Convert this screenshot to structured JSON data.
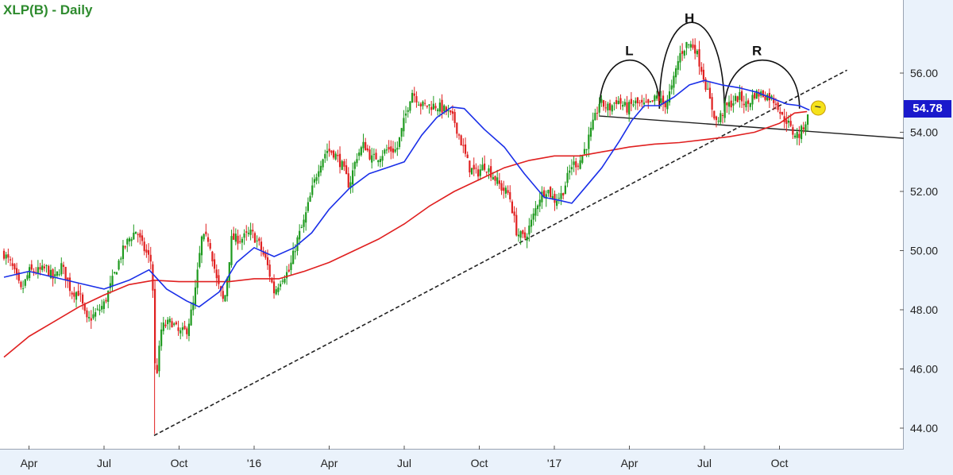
{
  "title": "XLP(B) - Daily",
  "last_price": "54.78",
  "colors": {
    "up": "#1f9a1f",
    "down": "#e02020",
    "ma_short": "#1a2fe8",
    "ma_long": "#e02020",
    "last_box": "#1a1acc",
    "marker": "#f5e21b"
  },
  "chart_data": {
    "type": "line",
    "title": "XLP(B) - Daily",
    "y_axis": {
      "min": 43.5,
      "max": 58,
      "tick_labels": [
        "44.00",
        "46.00",
        "48.00",
        "50.00",
        "52.00",
        "54.00",
        "56.00"
      ],
      "side": "right"
    },
    "x_axis": {
      "tick_labels": [
        "Apr",
        "Jul",
        "Oct",
        "'16",
        "Apr",
        "Jul",
        "Oct",
        "'17",
        "Apr",
        "Jul",
        "Oct"
      ],
      "tick_positions": [
        1,
        4,
        7,
        10,
        13,
        16,
        19,
        22,
        25,
        28,
        31
      ]
    },
    "grid": false,
    "price_waypoints": [
      [
        0,
        49.9
      ],
      [
        0.3,
        49.5
      ],
      [
        0.7,
        48.6
      ],
      [
        1.0,
        49.3
      ],
      [
        1.4,
        49.3
      ],
      [
        1.7,
        49.4
      ],
      [
        2.0,
        49.0
      ],
      [
        2.3,
        49.5
      ],
      [
        2.7,
        48.6
      ],
      [
        3.0,
        48.6
      ],
      [
        3.3,
        47.6
      ],
      [
        3.7,
        47.9
      ],
      [
        4.0,
        48.2
      ],
      [
        4.3,
        48.9
      ],
      [
        4.7,
        49.9
      ],
      [
        5.0,
        50.4
      ],
      [
        5.3,
        50.7
      ],
      [
        5.5,
        50.2
      ],
      [
        5.9,
        49.6
      ],
      [
        6.0,
        47.8
      ],
      [
        6.05,
        45.4
      ],
      [
        6.3,
        47.4
      ],
      [
        6.7,
        47.6
      ],
      [
        7.0,
        47.2
      ],
      [
        7.3,
        47.3
      ],
      [
        7.6,
        48.3
      ],
      [
        7.9,
        50.4
      ],
      [
        8.2,
        50.4
      ],
      [
        8.5,
        49.0
      ],
      [
        8.8,
        48.2
      ],
      [
        9.1,
        50.4
      ],
      [
        9.5,
        50.4
      ],
      [
        9.9,
        50.6
      ],
      [
        10.2,
        50.2
      ],
      [
        10.5,
        49.6
      ],
      [
        10.8,
        48.6
      ],
      [
        11.1,
        49.1
      ],
      [
        11.4,
        49.3
      ],
      [
        11.7,
        50.3
      ],
      [
        12.0,
        51.0
      ],
      [
        12.3,
        52.0
      ],
      [
        12.6,
        52.9
      ],
      [
        12.9,
        53.4
      ],
      [
        13.2,
        53.3
      ],
      [
        13.5,
        52.9
      ],
      [
        13.8,
        52.2
      ],
      [
        14.1,
        53.2
      ],
      [
        14.4,
        53.6
      ],
      [
        14.7,
        53.1
      ],
      [
        15.0,
        53.2
      ],
      [
        15.3,
        53.4
      ],
      [
        15.7,
        53.4
      ],
      [
        16.0,
        54.4
      ],
      [
        16.3,
        55.4
      ],
      [
        16.7,
        54.9
      ],
      [
        17.0,
        54.9
      ],
      [
        17.3,
        54.9
      ],
      [
        17.7,
        54.7
      ],
      [
        18.0,
        54.4
      ],
      [
        18.3,
        53.6
      ],
      [
        18.6,
        52.8
      ],
      [
        18.9,
        52.6
      ],
      [
        19.2,
        52.9
      ],
      [
        19.5,
        52.6
      ],
      [
        19.9,
        52.1
      ],
      [
        20.2,
        51.9
      ],
      [
        20.5,
        50.6
      ],
      [
        20.8,
        50.4
      ],
      [
        21.1,
        51.0
      ],
      [
        21.4,
        51.8
      ],
      [
        21.7,
        52.1
      ],
      [
        22.0,
        51.7
      ],
      [
        22.3,
        51.9
      ],
      [
        22.7,
        52.9
      ],
      [
        23.0,
        53.0
      ],
      [
        23.3,
        53.6
      ],
      [
        23.6,
        54.4
      ],
      [
        23.8,
        55.0
      ],
      [
        24.2,
        54.8
      ],
      [
        24.5,
        55.1
      ],
      [
        24.9,
        54.8
      ],
      [
        25.2,
        55.0
      ],
      [
        25.5,
        54.9
      ],
      [
        25.8,
        54.9
      ],
      [
        26.1,
        55.2
      ],
      [
        26.4,
        54.9
      ],
      [
        26.7,
        55.5
      ],
      [
        27.0,
        56.6
      ],
      [
        27.3,
        57.0
      ],
      [
        27.6,
        56.9
      ],
      [
        27.9,
        56.1
      ],
      [
        28.2,
        55.1
      ],
      [
        28.5,
        54.3
      ],
      [
        28.8,
        54.8
      ],
      [
        29.1,
        55.0
      ],
      [
        29.4,
        55.2
      ],
      [
        29.7,
        54.9
      ],
      [
        30.0,
        55.3
      ],
      [
        30.3,
        55.3
      ],
      [
        30.6,
        55.2
      ],
      [
        30.9,
        55.0
      ],
      [
        31.1,
        54.5
      ],
      [
        31.3,
        54.4
      ],
      [
        31.5,
        54.0
      ],
      [
        31.8,
        53.9
      ],
      [
        32.0,
        54.3
      ],
      [
        32.2,
        54.6
      ]
    ],
    "ma_short_waypoints": [
      [
        0,
        49.1
      ],
      [
        1,
        49.3
      ],
      [
        2,
        49.1
      ],
      [
        3,
        48.9
      ],
      [
        4,
        48.7
      ],
      [
        5,
        49.0
      ],
      [
        5.8,
        49.35
      ],
      [
        6.5,
        48.7
      ],
      [
        7.3,
        48.3
      ],
      [
        7.8,
        48.1
      ],
      [
        8.6,
        48.6
      ],
      [
        9.3,
        49.6
      ],
      [
        10.0,
        50.1
      ],
      [
        10.8,
        49.8
      ],
      [
        11.6,
        50.1
      ],
      [
        12.3,
        50.6
      ],
      [
        13.0,
        51.4
      ],
      [
        13.8,
        52.1
      ],
      [
        14.6,
        52.6
      ],
      [
        15.3,
        52.8
      ],
      [
        16.0,
        53.0
      ],
      [
        16.7,
        53.9
      ],
      [
        17.3,
        54.5
      ],
      [
        17.9,
        54.85
      ],
      [
        18.4,
        54.8
      ],
      [
        19.2,
        54.1
      ],
      [
        20.0,
        53.5
      ],
      [
        20.8,
        52.6
      ],
      [
        21.6,
        51.8
      ],
      [
        22.2,
        51.7
      ],
      [
        22.7,
        51.6
      ],
      [
        23.2,
        52.1
      ],
      [
        23.9,
        52.8
      ],
      [
        24.6,
        53.7
      ],
      [
        25.1,
        54.4
      ],
      [
        25.6,
        54.9
      ],
      [
        26.2,
        54.9
      ],
      [
        26.8,
        55.2
      ],
      [
        27.4,
        55.6
      ],
      [
        28.0,
        55.75
      ],
      [
        28.7,
        55.6
      ],
      [
        29.4,
        55.5
      ],
      [
        30.1,
        55.35
      ],
      [
        30.7,
        55.15
      ],
      [
        31.3,
        54.95
      ],
      [
        31.8,
        54.9
      ],
      [
        32.2,
        54.75
      ]
    ],
    "ma_long_waypoints": [
      [
        0,
        46.4
      ],
      [
        1,
        47.1
      ],
      [
        2,
        47.6
      ],
      [
        3,
        48.1
      ],
      [
        4,
        48.5
      ],
      [
        5,
        48.85
      ],
      [
        6,
        49.0
      ],
      [
        7,
        48.95
      ],
      [
        8,
        48.95
      ],
      [
        9,
        48.95
      ],
      [
        10,
        49.05
      ],
      [
        11,
        49.05
      ],
      [
        12,
        49.3
      ],
      [
        13,
        49.6
      ],
      [
        14,
        50.0
      ],
      [
        15,
        50.4
      ],
      [
        16,
        50.9
      ],
      [
        17,
        51.5
      ],
      [
        18,
        52.0
      ],
      [
        19,
        52.4
      ],
      [
        20,
        52.8
      ],
      [
        21,
        53.05
      ],
      [
        22,
        53.2
      ],
      [
        23,
        53.2
      ],
      [
        24,
        53.35
      ],
      [
        25,
        53.5
      ],
      [
        26,
        53.6
      ],
      [
        27,
        53.65
      ],
      [
        28,
        53.75
      ],
      [
        29,
        53.85
      ],
      [
        30,
        54.0
      ],
      [
        31,
        54.3
      ],
      [
        31.6,
        54.65
      ],
      [
        32.1,
        54.7
      ]
    ],
    "trendline": {
      "x": [
        6.0,
        33.7
      ],
      "y": [
        43.75,
        56.1
      ],
      "style": "dashed"
    },
    "neckline": {
      "x": [
        23.8,
        36.7
      ],
      "y": [
        54.55,
        53.75
      ],
      "style": "solid"
    },
    "annotations": [
      {
        "text": "L",
        "x": 25.0,
        "y": 56.6
      },
      {
        "text": "H",
        "x": 27.4,
        "y": 57.7
      },
      {
        "text": "R",
        "x": 30.1,
        "y": 56.6
      }
    ]
  }
}
